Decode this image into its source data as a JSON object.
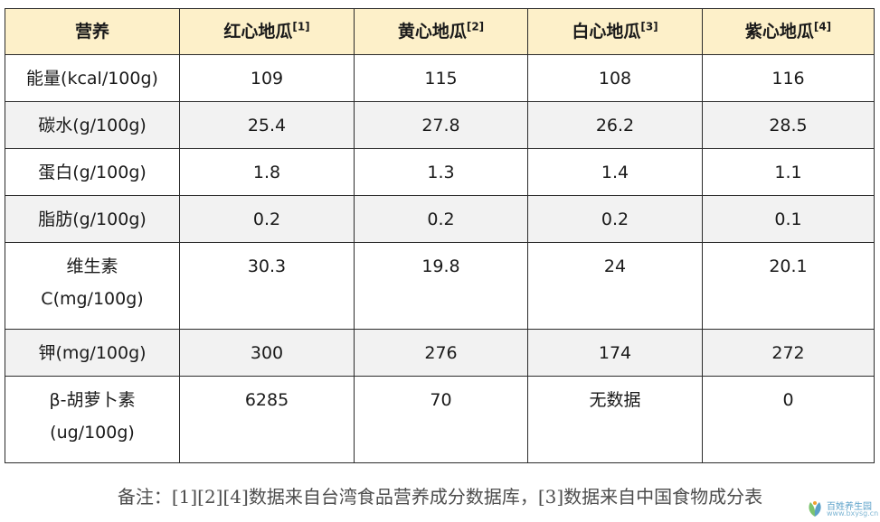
{
  "table": {
    "header": [
      {
        "label": "营养",
        "ref": ""
      },
      {
        "label": "红心地瓜",
        "ref": "[1]"
      },
      {
        "label": "黄心地瓜",
        "ref": "[2]"
      },
      {
        "label": "白心地瓜",
        "ref": "[3]"
      },
      {
        "label": "紫心地瓜",
        "ref": "[4]"
      }
    ],
    "rows": [
      {
        "nutrient": [
          "能量(kcal/100g)"
        ],
        "values": [
          "109",
          "115",
          "108",
          "116"
        ]
      },
      {
        "nutrient": [
          "碳水(g/100g)"
        ],
        "values": [
          "25.4",
          "27.8",
          "26.2",
          "28.5"
        ]
      },
      {
        "nutrient": [
          "蛋白(g/100g)"
        ],
        "values": [
          "1.8",
          "1.3",
          "1.4",
          "1.1"
        ]
      },
      {
        "nutrient": [
          "脂肪(g/100g)"
        ],
        "values": [
          "0.2",
          "0.2",
          "0.2",
          "0.1"
        ]
      },
      {
        "nutrient": [
          "维生素",
          "C(mg/100g)"
        ],
        "values": [
          "30.3",
          "19.8",
          "24",
          "20.1"
        ]
      },
      {
        "nutrient": [
          "钾(mg/100g)"
        ],
        "values": [
          "300",
          "276",
          "174",
          "272"
        ]
      },
      {
        "nutrient": [
          "β-胡萝卜素",
          "(ug/100g)"
        ],
        "values": [
          "6285",
          "70",
          "无数据",
          "0"
        ]
      }
    ]
  },
  "footnote": "备注：[1][2][4]数据来自台湾食品营养成分数据库，[3]数据来自中国食物成分表",
  "watermark": {
    "name": "百姓养生园",
    "url": "www.bxysg.cn",
    "colors": {
      "leaf": "#7cc36e",
      "accent": "#5aa0c8"
    }
  }
}
